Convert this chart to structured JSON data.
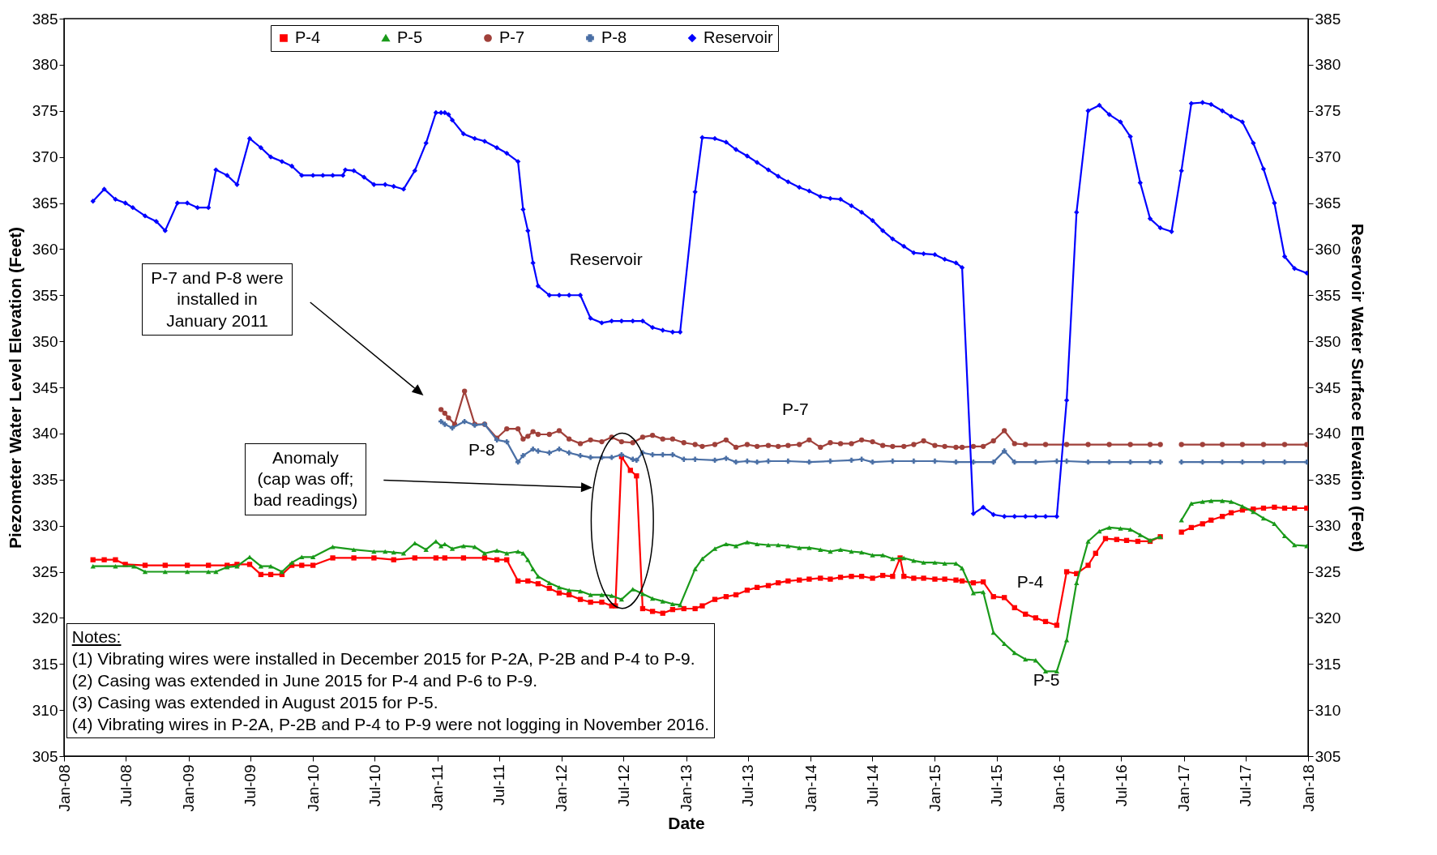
{
  "chart_data": {
    "type": "line",
    "xlabel": "Date",
    "ylabel": "Piezometer Water Level Elevation (Feet)",
    "y2label": "Reservoir Water Surface Elevation (Feet)",
    "xlim": [
      "2008-01",
      "2018-01"
    ],
    "xticks": [
      {
        "value": "2008-01",
        "label": "Jan-08"
      },
      {
        "value": "2008-07",
        "label": "Jul-08"
      },
      {
        "value": "2009-01",
        "label": "Jan-09"
      },
      {
        "value": "2009-07",
        "label": "Jul-09"
      },
      {
        "value": "2010-01",
        "label": "Jan-10"
      },
      {
        "value": "2010-07",
        "label": "Jul-10"
      },
      {
        "value": "2011-01",
        "label": "Jan-11"
      },
      {
        "value": "2011-07",
        "label": "Jul-11"
      },
      {
        "value": "2012-01",
        "label": "Jan-12"
      },
      {
        "value": "2012-07",
        "label": "Jul-12"
      },
      {
        "value": "2013-01",
        "label": "Jan-13"
      },
      {
        "value": "2013-07",
        "label": "Jul-13"
      },
      {
        "value": "2014-01",
        "label": "Jan-14"
      },
      {
        "value": "2014-07",
        "label": "Jul-14"
      },
      {
        "value": "2015-01",
        "label": "Jan-15"
      },
      {
        "value": "2015-07",
        "label": "Jul-15"
      },
      {
        "value": "2016-01",
        "label": "Jan-16"
      },
      {
        "value": "2016-07",
        "label": "Jul-16"
      },
      {
        "value": "2017-01",
        "label": "Jan-17"
      },
      {
        "value": "2017-07",
        "label": "Jul-17"
      },
      {
        "value": "2018-01",
        "label": "Jan-18"
      }
    ],
    "ylim": [
      305,
      385
    ],
    "yticks": [
      305,
      310,
      315,
      320,
      325,
      330,
      335,
      340,
      345,
      350,
      355,
      360,
      365,
      370,
      375,
      380,
      385
    ],
    "y2lim": [
      305,
      385
    ],
    "y2ticks": [
      305,
      310,
      315,
      320,
      325,
      330,
      335,
      340,
      345,
      350,
      355,
      360,
      365,
      370,
      375,
      380,
      385
    ],
    "legend": "top",
    "series": [
      {
        "name": "P-4",
        "color": "#ff0000",
        "marker": "square",
        "x": [
          "2008-03-26",
          "2008-04-28",
          "2008-05-31",
          "2008-06-29",
          "2008-08-26",
          "2008-10-24",
          "2008-12-28",
          "2009-02-28",
          "2009-04-24",
          "2009-05-23",
          "2009-06-29",
          "2009-08-01",
          "2009-08-30",
          "2009-10-02",
          "2009-10-31",
          "2009-11-29",
          "2010-01-01",
          "2010-02-28",
          "2010-05-01",
          "2010-06-29",
          "2010-08-26",
          "2010-10-27",
          "2010-12-28",
          "2011-01-23",
          "2011-03-19",
          "2011-05-20",
          "2011-06-25",
          "2011-07-24",
          "2011-08-26",
          "2011-09-24",
          "2011-10-24",
          "2011-11-26",
          "2011-12-25",
          "2012-01-23",
          "2012-02-25",
          "2012-03-26",
          "2012-04-28",
          "2012-05-27",
          "2012-06-07",
          "2012-06-25",
          "2012-07-21",
          "2012-08-08",
          "2012-08-26",
          "2012-09-24",
          "2012-10-24",
          "2012-11-22",
          "2012-12-25",
          "2013-01-27",
          "2013-02-17",
          "2013-03-26",
          "2013-04-28",
          "2013-05-27",
          "2013-06-29",
          "2013-07-28",
          "2013-08-30",
          "2013-09-28",
          "2013-10-27",
          "2013-11-29",
          "2013-12-28",
          "2014-01-30",
          "2014-02-28",
          "2014-03-30",
          "2014-05-01",
          "2014-05-31",
          "2014-07-02",
          "2014-08-01",
          "2014-08-30",
          "2014-09-21",
          "2014-10-02",
          "2014-10-31",
          "2014-11-29",
          "2015-01-01",
          "2015-01-30",
          "2015-03-04",
          "2015-03-22",
          "2015-04-24",
          "2015-05-23",
          "2015-06-22",
          "2015-07-24",
          "2015-08-23",
          "2015-09-24",
          "2015-10-24",
          "2015-11-22",
          "2015-12-25",
          "2016-01-23",
          "2016-02-21",
          "2016-03-26",
          "2016-04-17",
          "2016-05-16",
          "2016-06-18",
          "2016-07-17",
          "2016-08-19",
          "2016-09-24",
          "2016-10-24",
          "2016-11-26",
          "2016-12-25",
          "2017-01-23",
          "2017-02-25",
          "2017-03-22",
          "2017-04-24",
          "2017-05-20",
          "2017-06-22",
          "2017-07-24",
          "2017-08-23",
          "2017-09-24",
          "2017-10-24",
          "2017-11-22",
          "2017-12-28"
        ],
        "values": [
          326.3,
          326.3,
          326.3,
          325.8,
          325.7,
          325.7,
          325.7,
          325.7,
          325.7,
          325.8,
          325.8,
          324.7,
          324.7,
          324.7,
          325.7,
          325.7,
          325.7,
          326.5,
          326.5,
          326.5,
          326.3,
          326.5,
          326.5,
          326.5,
          326.5,
          326.5,
          326.3,
          326.3,
          324.0,
          324.0,
          323.7,
          323.2,
          322.7,
          322.5,
          322.0,
          321.7,
          321.7,
          321.3,
          321.3,
          337.5,
          336.0,
          335.4,
          321.0,
          320.7,
          320.5,
          320.9,
          321.0,
          321.0,
          321.3,
          322.0,
          322.3,
          322.5,
          323.0,
          323.3,
          323.5,
          323.8,
          324.0,
          324.1,
          324.2,
          324.3,
          324.2,
          324.4,
          324.5,
          324.5,
          324.3,
          324.6,
          324.5,
          326.5,
          324.5,
          324.3,
          324.3,
          324.2,
          324.2,
          324.1,
          324.0,
          323.8,
          323.9,
          322.3,
          322.2,
          321.1,
          320.4,
          320.0,
          319.6,
          319.2,
          325.0,
          324.8,
          325.7,
          327.0,
          328.6,
          328.5,
          328.4,
          328.3,
          328.3,
          328.8,
          null,
          329.3,
          329.8,
          330.2,
          330.6,
          331.0,
          331.4,
          331.7,
          331.8,
          331.9,
          332.0,
          331.9,
          331.9,
          331.9
        ]
      },
      {
        "name": "P-5",
        "color": "#1a9a1a",
        "marker": "triangle",
        "x": [
          "2008-03-26",
          "2008-05-31",
          "2008-07-24",
          "2008-08-26",
          "2008-10-24",
          "2008-12-28",
          "2009-02-28",
          "2009-03-22",
          "2009-04-24",
          "2009-05-23",
          "2009-06-29",
          "2009-08-01",
          "2009-08-30",
          "2009-10-02",
          "2009-10-31",
          "2009-11-29",
          "2010-01-01",
          "2010-02-28",
          "2010-05-01",
          "2010-06-29",
          "2010-08-01",
          "2010-08-26",
          "2010-09-24",
          "2010-10-27",
          "2010-11-29",
          "2010-12-28",
          "2011-01-12",
          "2011-01-23",
          "2011-02-14",
          "2011-03-19",
          "2011-04-21",
          "2011-05-20",
          "2011-06-25",
          "2011-07-24",
          "2011-08-26",
          "2011-09-10",
          "2011-09-24",
          "2011-10-09",
          "2011-10-24",
          "2011-11-26",
          "2011-12-25",
          "2012-01-23",
          "2012-02-25",
          "2012-03-26",
          "2012-04-28",
          "2012-05-27",
          "2012-06-25",
          "2012-07-28",
          "2012-08-26",
          "2012-09-24",
          "2012-10-24",
          "2012-11-22",
          "2012-12-14",
          "2013-01-27",
          "2013-02-17",
          "2013-03-26",
          "2013-04-28",
          "2013-05-27",
          "2013-06-29",
          "2013-07-28",
          "2013-08-30",
          "2013-09-28",
          "2013-10-27",
          "2013-11-29",
          "2013-12-28",
          "2014-01-30",
          "2014-02-28",
          "2014-03-30",
          "2014-05-01",
          "2014-05-31",
          "2014-07-02",
          "2014-08-01",
          "2014-08-30",
          "2014-10-02",
          "2014-10-31",
          "2014-11-29",
          "2015-01-01",
          "2015-01-30",
          "2015-03-04",
          "2015-03-22",
          "2015-04-24",
          "2015-05-23",
          "2015-06-22",
          "2015-07-24",
          "2015-08-23",
          "2015-09-24",
          "2015-10-24",
          "2015-11-22",
          "2015-12-25",
          "2016-01-23",
          "2016-02-21",
          "2016-03-26",
          "2016-04-28",
          "2016-05-27",
          "2016-06-29",
          "2016-07-28",
          "2016-08-26",
          "2016-09-24",
          "2016-10-24",
          "2016-11-26",
          "2016-12-25",
          "2017-01-23",
          "2017-02-25",
          "2017-03-22",
          "2017-04-24",
          "2017-05-20",
          "2017-06-22",
          "2017-07-24",
          "2017-08-23",
          "2017-09-24",
          "2017-10-24",
          "2017-11-22",
          "2017-12-28"
        ],
        "values": [
          325.6,
          325.6,
          325.6,
          325.0,
          325.0,
          325.0,
          325.0,
          325.0,
          325.5,
          325.6,
          326.6,
          325.6,
          325.6,
          325.0,
          326.0,
          326.6,
          326.6,
          327.7,
          327.4,
          327.2,
          327.2,
          327.1,
          327.0,
          328.1,
          327.4,
          328.3,
          327.8,
          328.0,
          327.5,
          327.8,
          327.7,
          327.0,
          327.3,
          327.0,
          327.2,
          327.0,
          326.3,
          325.3,
          324.5,
          323.8,
          323.3,
          323.0,
          322.9,
          322.5,
          322.5,
          322.4,
          322.0,
          323.1,
          322.6,
          322.1,
          321.8,
          321.5,
          321.4,
          325.3,
          326.4,
          327.5,
          328.0,
          327.8,
          328.2,
          328.0,
          327.9,
          327.9,
          327.8,
          327.6,
          327.6,
          327.4,
          327.2,
          327.4,
          327.2,
          327.1,
          326.8,
          326.8,
          326.4,
          326.5,
          326.2,
          326.0,
          326.0,
          325.9,
          325.9,
          325.4,
          322.7,
          322.8,
          318.4,
          317.2,
          316.2,
          315.5,
          315.4,
          314.2,
          314.2,
          317.6,
          323.8,
          328.3,
          329.4,
          329.8,
          329.7,
          329.6,
          329.0,
          328.4,
          328.8,
          null,
          330.6,
          332.4,
          332.6,
          332.7,
          332.7,
          332.6,
          332.1,
          331.5,
          330.8,
          330.2,
          328.9,
          327.9,
          327.8
        ]
      },
      {
        "name": "P-7",
        "color": "#a0403a",
        "marker": "circle",
        "x": [
          "2011-01-12",
          "2011-01-23",
          "2011-02-03",
          "2011-02-21",
          "2011-03-22",
          "2011-04-21",
          "2011-05-20",
          "2011-06-25",
          "2011-07-24",
          "2011-08-26",
          "2011-09-10",
          "2011-09-24",
          "2011-10-09",
          "2011-10-24",
          "2011-11-26",
          "2011-12-25",
          "2012-01-23",
          "2012-02-25",
          "2012-03-26",
          "2012-04-28",
          "2012-05-27",
          "2012-06-25",
          "2012-07-28",
          "2012-08-26",
          "2012-09-24",
          "2012-10-24",
          "2012-11-22",
          "2012-12-25",
          "2013-01-27",
          "2013-02-17",
          "2013-03-26",
          "2013-04-28",
          "2013-05-27",
          "2013-06-29",
          "2013-07-28",
          "2013-08-30",
          "2013-09-28",
          "2013-10-27",
          "2013-11-29",
          "2013-12-28",
          "2014-01-30",
          "2014-02-28",
          "2014-03-30",
          "2014-05-01",
          "2014-05-31",
          "2014-07-02",
          "2014-08-01",
          "2014-08-30",
          "2014-10-02",
          "2014-10-31",
          "2014-11-29",
          "2015-01-01",
          "2015-01-30",
          "2015-03-04",
          "2015-03-22",
          "2015-04-24",
          "2015-05-23",
          "2015-06-22",
          "2015-07-24",
          "2015-08-23",
          "2015-09-24",
          "2015-11-22",
          "2016-01-23",
          "2016-03-26",
          "2016-05-27",
          "2016-07-28",
          "2016-09-24",
          "2016-10-24",
          "2016-11-26",
          "2016-12-25",
          "2017-02-25",
          "2017-04-24",
          "2017-06-22",
          "2017-08-23",
          "2017-10-24",
          "2017-12-28"
        ],
        "values": [
          342.6,
          342.2,
          341.7,
          341.0,
          344.6,
          341.0,
          341.0,
          339.5,
          340.5,
          340.5,
          339.4,
          339.7,
          340.2,
          339.9,
          339.9,
          340.3,
          339.4,
          338.9,
          339.3,
          339.1,
          339.6,
          339.1,
          339.0,
          339.6,
          339.8,
          339.4,
          339.4,
          339.0,
          338.8,
          338.6,
          338.8,
          339.3,
          338.5,
          338.8,
          338.6,
          338.7,
          338.6,
          338.7,
          338.8,
          339.3,
          338.5,
          339.0,
          338.9,
          338.9,
          339.3,
          339.1,
          338.7,
          338.6,
          338.6,
          338.8,
          339.2,
          338.7,
          338.6,
          338.5,
          338.5,
          338.6,
          338.6,
          339.2,
          340.3,
          338.9,
          338.8,
          338.8,
          338.8,
          338.8,
          338.8,
          338.8,
          338.8,
          338.8,
          null,
          338.8,
          338.8,
          338.8,
          338.8,
          338.8,
          338.8,
          338.8
        ]
      },
      {
        "name": "P-8",
        "color": "#4a6fa5",
        "marker": "cross",
        "x": [
          "2011-01-12",
          "2011-01-23",
          "2011-02-14",
          "2011-03-22",
          "2011-04-21",
          "2011-05-20",
          "2011-06-25",
          "2011-07-24",
          "2011-08-26",
          "2011-09-10",
          "2011-10-09",
          "2011-10-24",
          "2011-11-26",
          "2011-12-25",
          "2012-01-23",
          "2012-02-25",
          "2012-03-26",
          "2012-04-28",
          "2012-05-27",
          "2012-06-25",
          "2012-07-28",
          "2012-08-08",
          "2012-08-26",
          "2012-09-24",
          "2012-10-24",
          "2012-11-22",
          "2012-12-25",
          "2013-01-27",
          "2013-03-26",
          "2013-04-28",
          "2013-05-27",
          "2013-06-29",
          "2013-07-28",
          "2013-08-30",
          "2013-10-27",
          "2013-12-28",
          "2014-02-28",
          "2014-05-01",
          "2014-05-31",
          "2014-07-02",
          "2014-08-30",
          "2014-10-31",
          "2015-01-01",
          "2015-03-04",
          "2015-04-24",
          "2015-06-22",
          "2015-07-24",
          "2015-08-23",
          "2015-10-24",
          "2015-12-25",
          "2016-01-23",
          "2016-03-26",
          "2016-05-27",
          "2016-07-28",
          "2016-09-24",
          "2016-10-24",
          "2016-11-26",
          "2016-12-25",
          "2017-02-25",
          "2017-04-24",
          "2017-06-22",
          "2017-08-23",
          "2017-10-24",
          "2017-12-28"
        ],
        "values": [
          341.3,
          341.0,
          340.6,
          341.3,
          340.9,
          341.0,
          339.3,
          339.1,
          336.9,
          337.6,
          338.3,
          338.1,
          337.9,
          338.3,
          337.9,
          337.6,
          337.4,
          337.4,
          337.4,
          337.7,
          337.2,
          337.1,
          337.9,
          337.7,
          337.7,
          337.7,
          337.2,
          337.2,
          337.1,
          337.3,
          336.9,
          337.0,
          336.9,
          337.0,
          337.0,
          336.9,
          337.0,
          337.1,
          337.2,
          336.9,
          337.0,
          337.0,
          337.0,
          336.9,
          336.9,
          336.9,
          338.1,
          336.9,
          336.9,
          337.0,
          337.0,
          336.9,
          336.9,
          336.9,
          336.9,
          336.9,
          null,
          336.9,
          336.9,
          336.9,
          336.9,
          336.9,
          336.9,
          336.9
        ]
      },
      {
        "name": "Reservoir",
        "color": "#0000ff",
        "marker": "diamond",
        "axis": "y2",
        "x": [
          "2008-03-26",
          "2008-04-28",
          "2008-05-31",
          "2008-06-29",
          "2008-07-21",
          "2008-08-26",
          "2008-09-28",
          "2008-10-24",
          "2008-11-29",
          "2008-12-28",
          "2009-01-27",
          "2009-02-28",
          "2009-03-22",
          "2009-04-24",
          "2009-05-23",
          "2009-06-29",
          "2009-08-01",
          "2009-08-30",
          "2009-10-02",
          "2009-10-31",
          "2009-11-29",
          "2010-01-01",
          "2010-01-30",
          "2010-02-28",
          "2010-03-30",
          "2010-04-06",
          "2010-05-01",
          "2010-05-31",
          "2010-06-29",
          "2010-08-01",
          "2010-08-26",
          "2010-09-24",
          "2010-10-27",
          "2010-11-29",
          "2010-12-28",
          "2011-01-12",
          "2011-01-23",
          "2011-02-03",
          "2011-02-14",
          "2011-03-19",
          "2011-04-21",
          "2011-05-20",
          "2011-06-25",
          "2011-07-24",
          "2011-08-26",
          "2011-09-10",
          "2011-09-24",
          "2011-10-09",
          "2011-10-24",
          "2011-11-26",
          "2011-12-25",
          "2012-01-23",
          "2012-02-25",
          "2012-03-26",
          "2012-04-28",
          "2012-05-27",
          "2012-06-25",
          "2012-07-28",
          "2012-08-26",
          "2012-09-24",
          "2012-10-24",
          "2012-11-22",
          "2012-12-14",
          "2013-01-27",
          "2013-02-17",
          "2013-03-26",
          "2013-04-28",
          "2013-05-27",
          "2013-06-29",
          "2013-07-28",
          "2013-08-30",
          "2013-09-28",
          "2013-10-27",
          "2013-11-29",
          "2013-12-28",
          "2014-01-30",
          "2014-02-28",
          "2014-03-30",
          "2014-05-01",
          "2014-05-31",
          "2014-07-02",
          "2014-08-01",
          "2014-08-30",
          "2014-10-02",
          "2014-10-31",
          "2014-11-29",
          "2015-01-01",
          "2015-01-30",
          "2015-03-04",
          "2015-03-22",
          "2015-04-24",
          "2015-05-23",
          "2015-06-22",
          "2015-07-24",
          "2015-08-23",
          "2015-09-24",
          "2015-10-24",
          "2015-11-22",
          "2015-12-25",
          "2016-01-23",
          "2016-02-21",
          "2016-03-26",
          "2016-04-28",
          "2016-05-27",
          "2016-06-29",
          "2016-07-28",
          "2016-08-26",
          "2016-09-24",
          "2016-10-24",
          "2016-11-26",
          "2016-12-25",
          "2017-01-23",
          "2017-02-25",
          "2017-03-22",
          "2017-04-24",
          "2017-05-20",
          "2017-06-22",
          "2017-07-24",
          "2017-08-23",
          "2017-09-24",
          "2017-10-24",
          "2017-11-22",
          "2017-12-28"
        ],
        "values": [
          365.2,
          366.5,
          365.4,
          365.0,
          364.5,
          363.6,
          363.0,
          362.0,
          365.0,
          365.0,
          364.5,
          364.5,
          368.6,
          368.0,
          367.0,
          372.0,
          371.0,
          370.0,
          369.5,
          369.0,
          368.0,
          368.0,
          368.0,
          368.0,
          368.0,
          368.6,
          368.5,
          367.8,
          367.0,
          367.0,
          366.8,
          366.5,
          368.5,
          371.5,
          374.8,
          374.8,
          374.8,
          374.6,
          374.0,
          372.5,
          372.0,
          371.7,
          371.0,
          370.4,
          369.5,
          364.3,
          362.0,
          358.5,
          356.0,
          355.0,
          355.0,
          355.0,
          355.0,
          352.5,
          352.0,
          352.2,
          352.2,
          352.2,
          352.2,
          351.5,
          351.2,
          351.0,
          351.0,
          366.2,
          372.1,
          372.0,
          371.6,
          370.8,
          370.1,
          369.4,
          368.6,
          367.9,
          367.3,
          366.7,
          366.3,
          365.7,
          365.5,
          365.4,
          364.7,
          364.0,
          363.1,
          362.0,
          361.1,
          360.3,
          359.6,
          359.5,
          359.4,
          358.9,
          358.5,
          358.0,
          331.3,
          332.0,
          331.2,
          331.0,
          331.0,
          331.0,
          331.0,
          331.0,
          331.0,
          343.6,
          364.0,
          375.0,
          375.6,
          374.6,
          373.8,
          372.2,
          367.2,
          363.3,
          362.3,
          361.9,
          368.5,
          375.8,
          375.9,
          375.7,
          375.0,
          374.4,
          373.8,
          371.5,
          368.7,
          365.0,
          359.2,
          357.9,
          357.4
        ]
      }
    ],
    "annotations": [
      "Reservoir",
      "P-7",
      "P-8",
      "P-4",
      "P-5",
      "P-7 and P-8 were\ninstalled in\nJanuary 2011",
      "Anomaly\n(cap was off;\nbad readings)",
      "Notes:",
      "(1) Vibrating wires were installed in December 2015 for P-2A, P-2B and P-4 to P-9.",
      "(2) Casing was extended in June 2015 for P-4 and P-6 to P-9.",
      "(3) Casing was extended in August 2015 for P-5.",
      "(4) Vibrating wires in P-2A, P-2B and P-4 to P-9 were not logging in November 2016."
    ]
  }
}
